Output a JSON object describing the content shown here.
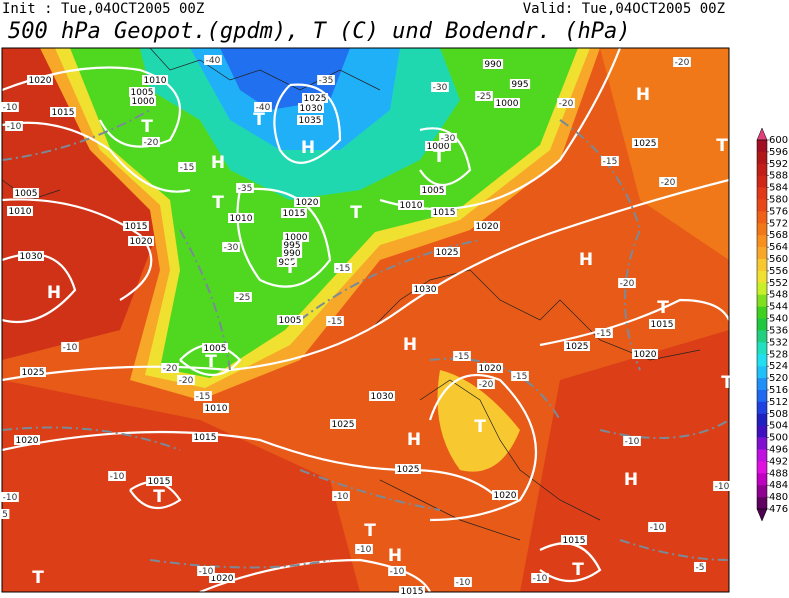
{
  "header": {
    "init": "Init : Tue,04OCT2005 00Z",
    "valid": "Valid: Tue,04OCT2005 00Z",
    "title": "500 hPa Geopot.(gpdm), T (C) und Bodendr. (hPa)"
  },
  "colorbar": {
    "labels": [
      600,
      596,
      592,
      588,
      584,
      580,
      576,
      572,
      568,
      564,
      560,
      556,
      552,
      548,
      544,
      540,
      536,
      532,
      528,
      524,
      520,
      516,
      512,
      508,
      504,
      500,
      496,
      492,
      488,
      484,
      480,
      476
    ],
    "colors": [
      "#e0407a",
      "#a01020",
      "#b01818",
      "#c02018",
      "#d02818",
      "#e03818",
      "#e84818",
      "#f06018",
      "#f07818",
      "#f89020",
      "#f8a828",
      "#f8c830",
      "#f0e030",
      "#c8f028",
      "#80e020",
      "#40d020",
      "#20c840",
      "#20d080",
      "#20e0c0",
      "#20e0f0",
      "#20c0f8",
      "#2090f8",
      "#2068f0",
      "#2040e0",
      "#2020c0",
      "#4010c0",
      "#8010d0",
      "#c010e0",
      "#e010e0",
      "#c000c0",
      "#900090",
      "#600060",
      "#500050"
    ]
  },
  "map": {
    "centers": [
      "H",
      "H",
      "H",
      "T",
      "T",
      "T",
      "T",
      "T",
      "H",
      "T",
      "T",
      "H",
      "H",
      "T",
      "T",
      "T",
      "T",
      "H",
      "H",
      "T",
      "T",
      "H",
      "T",
      "T"
    ],
    "isobars": [
      "1020",
      "1010",
      "1005",
      "1000",
      "1015",
      "1025",
      "1030",
      "1035",
      "990",
      "995",
      "1000",
      "1000",
      "1005",
      "1010",
      "1015",
      "1020",
      "1025",
      "1005",
      "1010",
      "1015",
      "1020",
      "1010",
      "1015",
      "1020",
      "1000",
      "995",
      "990",
      "985",
      "1030",
      "1005",
      "1030",
      "1025",
      "1015",
      "1020",
      "1025",
      "1020",
      "1005",
      "1010",
      "1015",
      "1025",
      "1020",
      "1030",
      "1025",
      "1025",
      "1020",
      "1015",
      "1020",
      "1015",
      "1015"
    ],
    "temps": [
      "-40",
      "-40",
      "-35",
      "-30",
      "-25",
      "-20",
      "-15",
      "-35",
      "-30",
      "-25",
      "-15",
      "-15",
      "-20",
      "-15",
      "-20",
      "-30",
      "-20",
      "-20",
      "-15",
      "-20",
      "-20",
      "-15",
      "-15",
      "-15",
      "-20",
      "-10",
      "-10",
      "-10",
      "-10",
      "-10",
      "-10",
      "-10",
      "-10",
      "-10",
      "-10",
      "-10",
      "-10",
      "-5",
      "-10",
      "-10",
      "5"
    ]
  }
}
